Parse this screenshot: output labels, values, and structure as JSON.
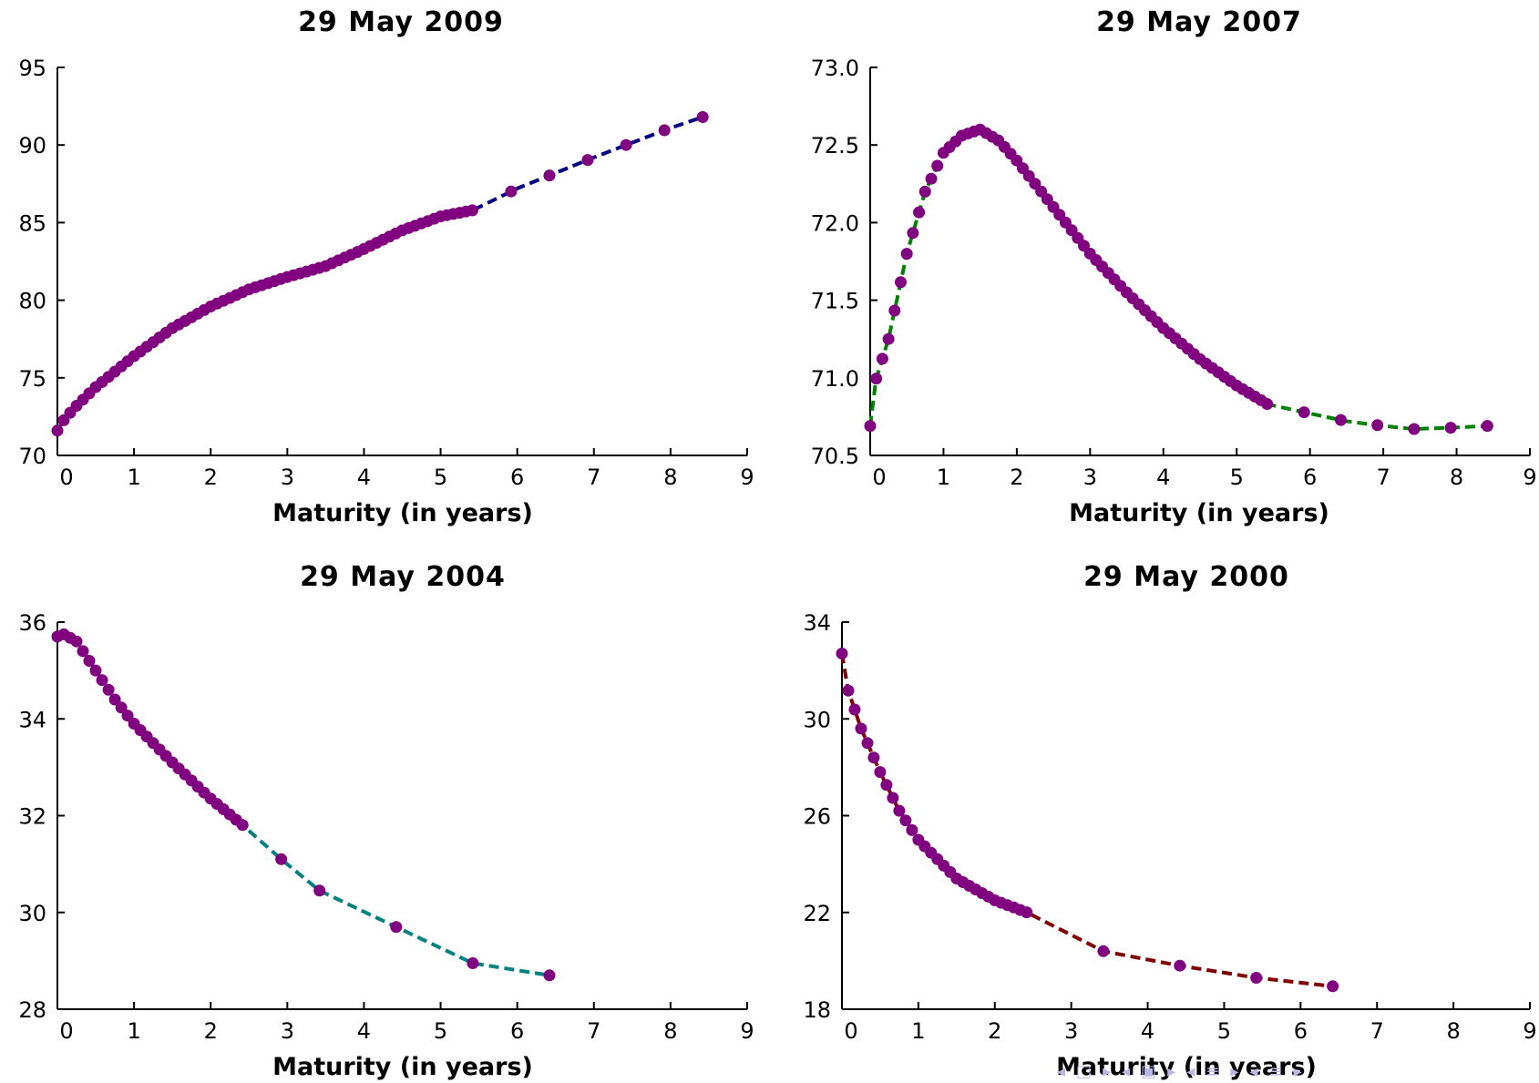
{
  "chart_data": [
    {
      "type": "line",
      "title": "29 May 2009",
      "xlabel": "Maturity (in years)",
      "ylabel": "",
      "xlim": [
        0,
        9
      ],
      "ylim": [
        70,
        95
      ],
      "xticks": [
        "0",
        "1",
        "2",
        "3",
        "4",
        "5",
        "6",
        "7",
        "8",
        "9"
      ],
      "yticks": [
        "70",
        "75",
        "80",
        "85",
        "90",
        "95"
      ],
      "line_color": "#000080",
      "marker_color": "#800080",
      "curve": [
        [
          0,
          71.6
        ],
        [
          0.1,
          72.4
        ],
        [
          0.25,
          73.2
        ],
        [
          0.5,
          74.4
        ],
        [
          0.75,
          75.4
        ],
        [
          1,
          76.4
        ],
        [
          1.5,
          78.2
        ],
        [
          2,
          79.6
        ],
        [
          2.5,
          80.7
        ],
        [
          3,
          81.5
        ],
        [
          3.5,
          82.2
        ],
        [
          4,
          83.3
        ],
        [
          4.5,
          84.5
        ],
        [
          5,
          85.4
        ],
        [
          5.42,
          85.8
        ],
        [
          6,
          87.2
        ],
        [
          7,
          89.2
        ],
        [
          8,
          91.1
        ],
        [
          8.42,
          91.8
        ]
      ],
      "markers": {
        "dense_from": 0,
        "dense_to": 5.42,
        "dense_step": 0.0833,
        "sparse": [
          5.92,
          6.42,
          6.92,
          7.42,
          7.92,
          8.42
        ]
      }
    },
    {
      "type": "line",
      "title": "29 May 2007",
      "xlabel": "Maturity (in years)",
      "ylabel": "",
      "xlim": [
        0,
        9
      ],
      "ylim": [
        70.5,
        73.0
      ],
      "xticks": [
        "0",
        "1",
        "2",
        "3",
        "4",
        "5",
        "6",
        "7",
        "8",
        "9"
      ],
      "yticks": [
        "70.5",
        "71.0",
        "71.5",
        "72.0",
        "72.5",
        "73.0"
      ],
      "line_color": "#008000",
      "marker_color": "#800080",
      "curve": [
        [
          0,
          70.69
        ],
        [
          0.08,
          70.99
        ],
        [
          0.25,
          71.25
        ],
        [
          0.5,
          71.8
        ],
        [
          0.75,
          72.2
        ],
        [
          1,
          72.45
        ],
        [
          1.25,
          72.56
        ],
        [
          1.5,
          72.6
        ],
        [
          1.75,
          72.53
        ],
        [
          2,
          72.4
        ],
        [
          2.5,
          72.1
        ],
        [
          3,
          71.8
        ],
        [
          3.5,
          71.55
        ],
        [
          4,
          71.32
        ],
        [
          4.5,
          71.12
        ],
        [
          5,
          70.95
        ],
        [
          5.42,
          70.83
        ],
        [
          6,
          70.77
        ],
        [
          6.5,
          70.72
        ],
        [
          7,
          70.69
        ],
        [
          7.42,
          70.67
        ],
        [
          8,
          70.68
        ],
        [
          8.42,
          70.69
        ]
      ],
      "markers": {
        "dense_from": 0,
        "dense_to": 5.42,
        "dense_step": 0.0833,
        "sparse": [
          5.92,
          6.42,
          6.92,
          7.42,
          7.92,
          8.42
        ]
      }
    },
    {
      "type": "line",
      "title": "29 May 2004",
      "xlabel": "Maturity (in years)",
      "ylabel": "",
      "xlim": [
        0,
        9
      ],
      "ylim": [
        28,
        36
      ],
      "xticks": [
        "0",
        "1",
        "2",
        "3",
        "4",
        "5",
        "6",
        "7",
        "8",
        "9"
      ],
      "yticks": [
        "28",
        "30",
        "32",
        "34",
        "36"
      ],
      "line_color": "#008080",
      "marker_color": "#800080",
      "curve": [
        [
          0,
          35.7
        ],
        [
          0.08,
          35.75
        ],
        [
          0.25,
          35.6
        ],
        [
          0.5,
          35.0
        ],
        [
          0.75,
          34.4
        ],
        [
          1,
          33.9
        ],
        [
          1.5,
          33.1
        ],
        [
          2,
          32.35
        ],
        [
          2.42,
          31.8
        ],
        [
          2.92,
          31.1
        ],
        [
          3.42,
          30.45
        ],
        [
          4.42,
          29.7
        ],
        [
          5.42,
          28.95
        ],
        [
          6.42,
          28.7
        ]
      ],
      "markers": {
        "dense_from": 0,
        "dense_to": 2.42,
        "dense_step": 0.0833,
        "sparse": [
          2.92,
          3.42,
          4.42,
          5.42,
          6.42
        ]
      }
    },
    {
      "type": "line",
      "title": "29 May 2000",
      "xlabel": "Maturity (in years)",
      "ylabel": "",
      "xlim": [
        0,
        9
      ],
      "ylim": [
        18,
        34
      ],
      "xticks": [
        "0",
        "1",
        "2",
        "3",
        "4",
        "5",
        "6",
        "7",
        "8",
        "9"
      ],
      "yticks": [
        "18",
        "22",
        "26",
        "30",
        "34"
      ],
      "line_color": "#800000",
      "marker_color": "#800080",
      "curve": [
        [
          0,
          32.7
        ],
        [
          0.08,
          31.2
        ],
        [
          0.25,
          29.6
        ],
        [
          0.5,
          27.8
        ],
        [
          0.75,
          26.2
        ],
        [
          1,
          25.0
        ],
        [
          1.5,
          23.4
        ],
        [
          2,
          22.5
        ],
        [
          2.42,
          22.0
        ],
        [
          3.42,
          20.4
        ],
        [
          4.42,
          19.8
        ],
        [
          5.42,
          19.3
        ],
        [
          6.42,
          18.95
        ]
      ],
      "markers": {
        "dense_from": 0,
        "dense_to": 2.42,
        "dense_step": 0.0833,
        "sparse": [
          3.42,
          4.42,
          5.42,
          6.42
        ]
      }
    }
  ],
  "nav_icons": [
    "triangle-left-icon",
    "slide-icon",
    "triangle-right-icon",
    "triangle-left-icon",
    "frame-icon",
    "triangle-right-icon",
    "triangle-left-icon",
    "section-icon",
    "triangle-right-icon",
    "triangle-left-icon",
    "subsection-icon",
    "triangle-right-icon"
  ]
}
